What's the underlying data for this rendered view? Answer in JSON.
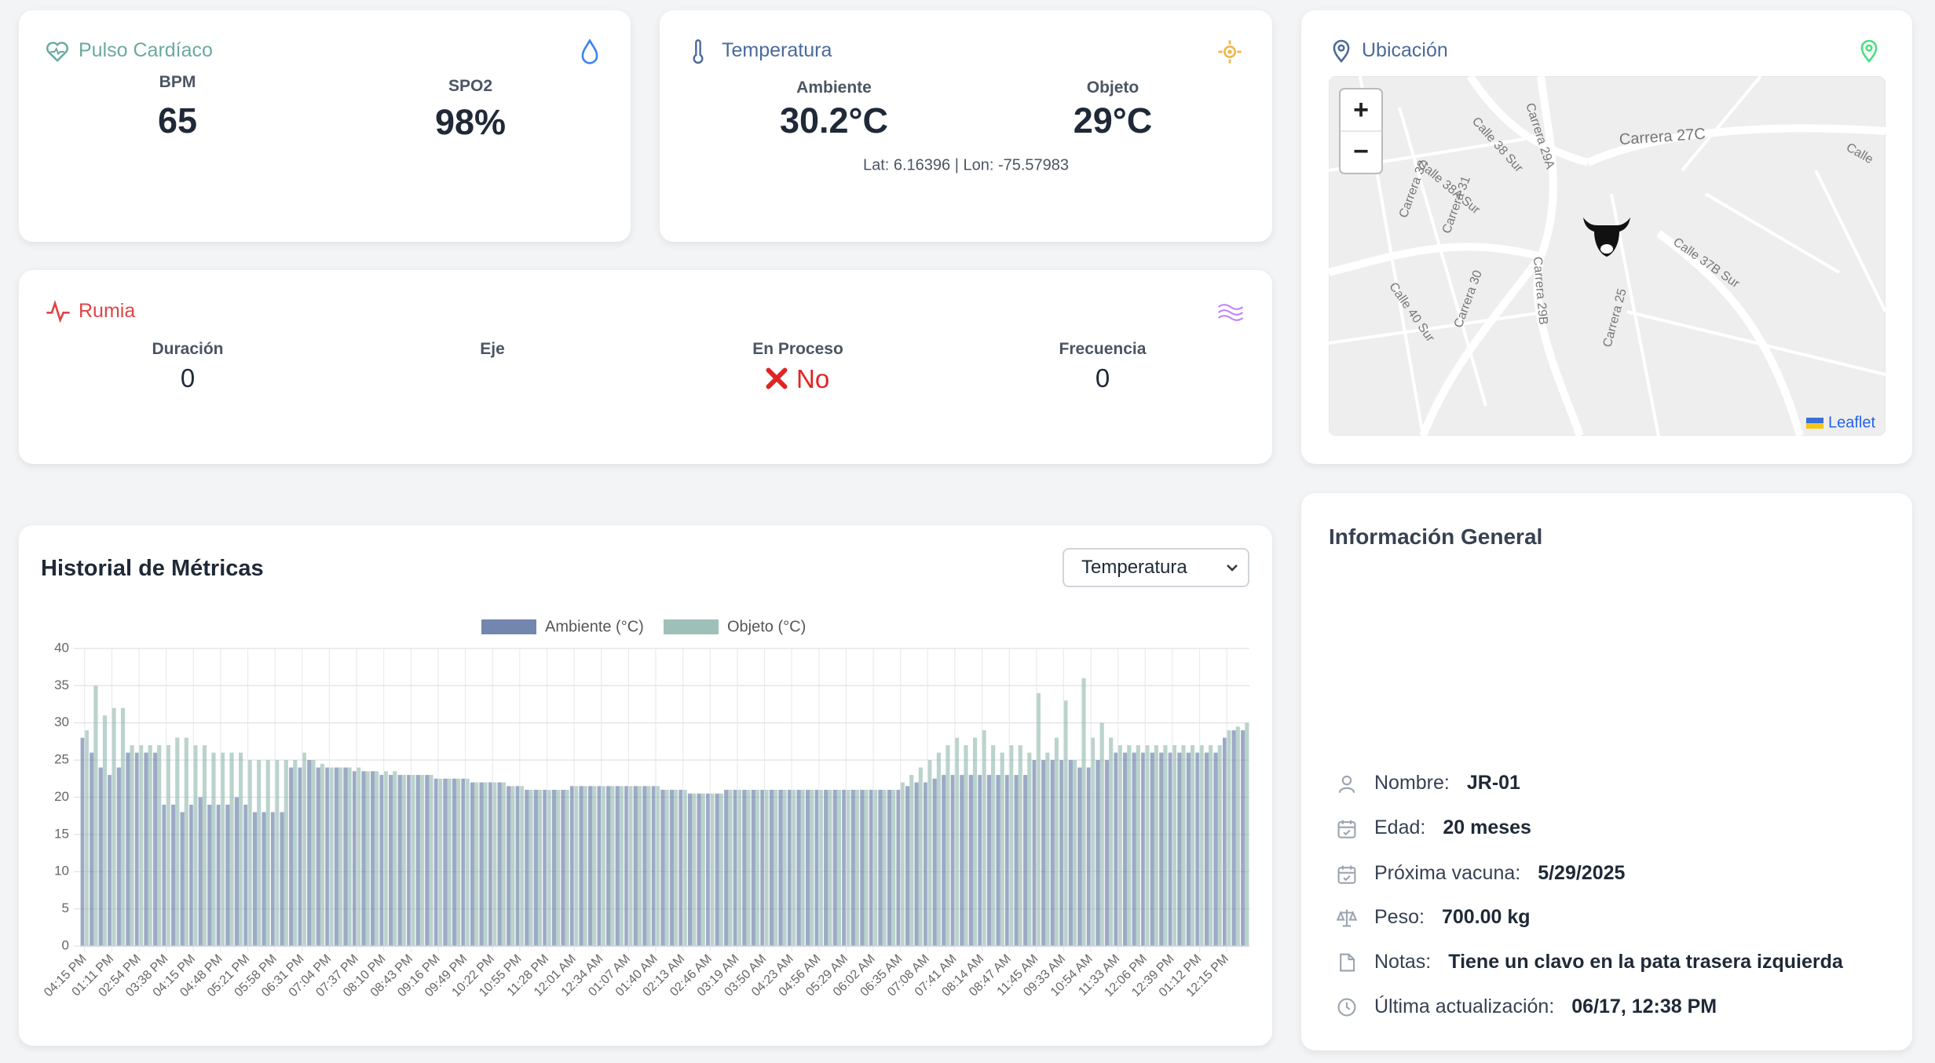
{
  "cards": {
    "pulse": {
      "title": "Pulso Cardíaco",
      "bpm_label": "BPM",
      "bpm": "65",
      "spo2_label": "SPO2",
      "spo2": "98%"
    },
    "temperature": {
      "title": "Temperatura",
      "ambient_label": "Ambiente",
      "ambient": "30.2°C",
      "object_label": "Objeto",
      "object": "29°C",
      "location": "Lat: 6.16396 | Lon: -75.57983"
    },
    "rumination": {
      "title": "Rumia",
      "duration_label": "Duración",
      "duration": "0",
      "axis_label": "Eje",
      "in_process_label": "En Proceso",
      "in_process": "No",
      "frequency_label": "Frecuencia",
      "frequency": "0"
    },
    "location": {
      "title": "Ubicación",
      "zoom_in": "+",
      "zoom_out": "−",
      "attribution": "Leaflet",
      "streets": [
        "Carrera 27C",
        "Calle 38A Sur",
        "Calle 38 Sur",
        "Carrera 29A",
        "Carrera 29B",
        "Carrera 30",
        "Carrera 25",
        "Calle 37B Sur",
        "Calle 40 Sur",
        "Carrera 32",
        "Carrera 31",
        "Calle"
      ]
    },
    "info": {
      "title": "Información General",
      "rows": [
        {
          "label": "Nombre:",
          "value": "JR-01"
        },
        {
          "label": "Edad:",
          "value": "20 meses"
        },
        {
          "label": "Próxima vacuna:",
          "value": "5/29/2025"
        },
        {
          "label": "Peso:",
          "value": "700.00 kg"
        },
        {
          "label": "Notas:",
          "value": "Tiene un clavo en la pata trasera izquierda"
        },
        {
          "label": "Última actualización:",
          "value": "06/17, 12:38 PM"
        }
      ]
    }
  },
  "history": {
    "title": "Historial de Métricas",
    "selector": "Temperatura"
  },
  "chart_data": {
    "type": "bar",
    "categories": [
      "04:15 PM",
      null,
      null,
      "01:11 PM",
      null,
      null,
      "02:54 PM",
      null,
      null,
      "03:38 PM",
      null,
      null,
      "04:15 PM",
      null,
      null,
      "04:48 PM",
      null,
      null,
      "05:21 PM",
      null,
      null,
      "05:58 PM",
      null,
      null,
      "06:31 PM",
      null,
      null,
      "07:04 PM",
      null,
      null,
      "07:37 PM",
      null,
      null,
      "08:10 PM",
      null,
      null,
      "08:43 PM",
      null,
      null,
      "09:16 PM",
      null,
      null,
      "09:49 PM",
      null,
      null,
      "10:22 PM",
      null,
      null,
      "10:55 PM",
      null,
      null,
      "11:28 PM",
      null,
      null,
      "12:01 AM",
      null,
      null,
      "12:34 AM",
      null,
      null,
      "01:07 AM",
      null,
      null,
      "01:40 AM",
      null,
      null,
      "02:13 AM",
      null,
      null,
      "02:46 AM",
      null,
      null,
      "03:19 AM",
      null,
      null,
      "03:50 AM",
      null,
      null,
      "04:23 AM",
      null,
      null,
      "04:56 AM",
      null,
      null,
      "05:29 AM",
      null,
      null,
      "06:02 AM",
      null,
      null,
      "06:35 AM",
      null,
      null,
      "07:08 AM",
      null,
      null,
      "07:41 AM",
      null,
      null,
      "08:14 AM",
      null,
      null,
      "08:47 AM",
      null,
      null,
      "11:45 AM",
      null,
      null,
      "09:33 AM",
      null,
      null,
      "10:54 AM",
      null,
      null,
      "11:33 AM",
      null,
      null,
      "12:06 PM",
      null,
      null,
      "12:39 PM",
      null,
      null,
      "01:12 PM",
      null,
      null,
      "12:15 PM",
      null,
      null
    ],
    "series": [
      {
        "name": "Ambiente (°C)",
        "color": "#5a72a0",
        "values": [
          28,
          26,
          24,
          23,
          24,
          26,
          26,
          26,
          26,
          19,
          19,
          18,
          19,
          20,
          19,
          19,
          19,
          20,
          19,
          18,
          18,
          18,
          18,
          24,
          24,
          25,
          24,
          24,
          24,
          24,
          23.5,
          23.5,
          23.5,
          23,
          23,
          23,
          23,
          23,
          23,
          22.5,
          22.5,
          22.5,
          22.5,
          22,
          22,
          22,
          22,
          21.5,
          21.5,
          21,
          21,
          21,
          21,
          21,
          21.5,
          21.5,
          21.5,
          21.5,
          21.5,
          21.5,
          21.5,
          21.5,
          21.5,
          21.5,
          21,
          21,
          21,
          20.5,
          20.5,
          20.5,
          20.5,
          21,
          21,
          21,
          21,
          21,
          21,
          21,
          21,
          21,
          21,
          21,
          21,
          21,
          21,
          21,
          21,
          21,
          21,
          21,
          21,
          21.5,
          22,
          22,
          22.5,
          23,
          23,
          23,
          23,
          23,
          23,
          23,
          23,
          23,
          23,
          25,
          25,
          25,
          25,
          25,
          24,
          24,
          25,
          25,
          26,
          26,
          26,
          26,
          26,
          26,
          26,
          26,
          26,
          26,
          26,
          26,
          28,
          29,
          29
        ]
      },
      {
        "name": "Objeto (°C)",
        "color": "#8db5ab",
        "values": [
          29,
          35,
          31,
          32,
          32,
          27,
          27,
          27,
          27,
          27,
          28,
          28,
          27,
          27,
          26,
          26,
          26,
          26,
          25,
          25,
          25,
          25,
          25,
          25,
          26,
          25,
          24.5,
          24,
          24,
          24,
          24,
          23.5,
          23.5,
          23.5,
          23.5,
          23,
          23,
          23,
          23,
          22.5,
          22.5,
          22.5,
          22.5,
          22,
          22,
          22,
          22,
          21.5,
          21.5,
          21,
          21,
          21,
          21,
          21,
          21.5,
          21.5,
          21.5,
          21.5,
          21.5,
          21.5,
          21.5,
          21.5,
          21.5,
          21.5,
          21,
          21,
          21,
          20.5,
          20.5,
          20.5,
          20.5,
          21,
          21,
          21,
          21,
          21,
          21,
          21,
          21,
          21,
          21,
          21,
          21,
          21,
          21,
          21,
          21,
          21,
          21,
          21,
          22,
          23,
          24,
          25,
          26,
          27,
          28,
          27,
          28,
          29,
          27,
          26,
          27,
          27,
          26,
          34,
          26,
          28,
          33,
          25,
          36,
          28,
          30,
          28,
          27,
          27,
          27,
          27,
          27,
          27,
          27,
          27,
          27,
          27,
          27,
          27,
          29,
          29.5,
          30
        ]
      }
    ],
    "ylim": [
      0,
      40
    ],
    "yticks": [
      0,
      5,
      10,
      15,
      20,
      25,
      30,
      35,
      40
    ],
    "grid": true,
    "legend": "top"
  }
}
